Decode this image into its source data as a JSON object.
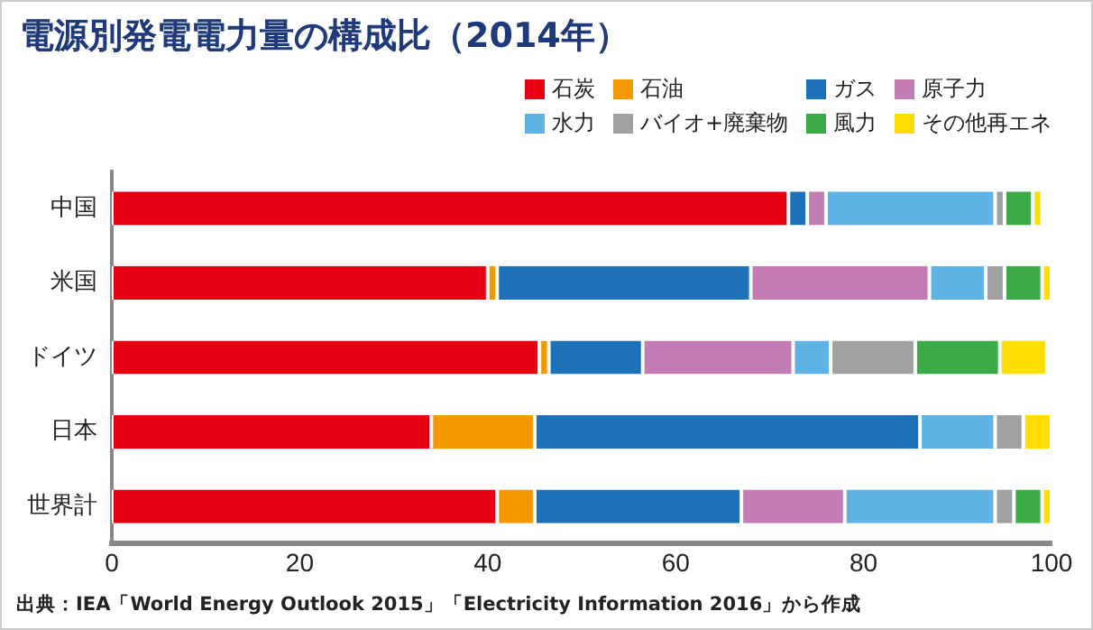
{
  "chart_data": {
    "type": "bar",
    "orientation": "horizontal",
    "stacked": true,
    "title": "電源別発電電力量の構成比（2014年）",
    "categories": [
      "中国",
      "米国",
      "ドイツ",
      "日本",
      "世界計"
    ],
    "series": [
      {
        "name": "石炭",
        "color": "#e60012",
        "values": [
          72,
          40,
          45.5,
          34,
          41
        ]
      },
      {
        "name": "石油",
        "color": "#f39800",
        "values": [
          0,
          1,
          1,
          11,
          4
        ]
      },
      {
        "name": "ガス",
        "color": "#1d71b8",
        "values": [
          2,
          27,
          10,
          41,
          22
        ]
      },
      {
        "name": "原子力",
        "color": "#c27bb3",
        "values": [
          2,
          19,
          16,
          0,
          11
        ]
      },
      {
        "name": "水力",
        "color": "#5eb3e4",
        "values": [
          18,
          6,
          4,
          8,
          16
        ]
      },
      {
        "name": "バイオ+廃棄物",
        "color": "#a0a0a0",
        "values": [
          1,
          2,
          9,
          3,
          2
        ]
      },
      {
        "name": "風力",
        "color": "#3aab46",
        "values": [
          3,
          4,
          9,
          0,
          3
        ]
      },
      {
        "name": "その他再エネ",
        "color": "#ffdd00",
        "values": [
          1,
          1,
          5,
          3,
          1
        ]
      }
    ],
    "xlim": [
      0,
      100
    ],
    "xticks": [
      0,
      20,
      40,
      60,
      80,
      100
    ],
    "grid": false,
    "legend": "top right",
    "annotations": [
      "出典：IEA「World Energy Outlook 2015」「Electricity Information 2016」から作成"
    ]
  }
}
